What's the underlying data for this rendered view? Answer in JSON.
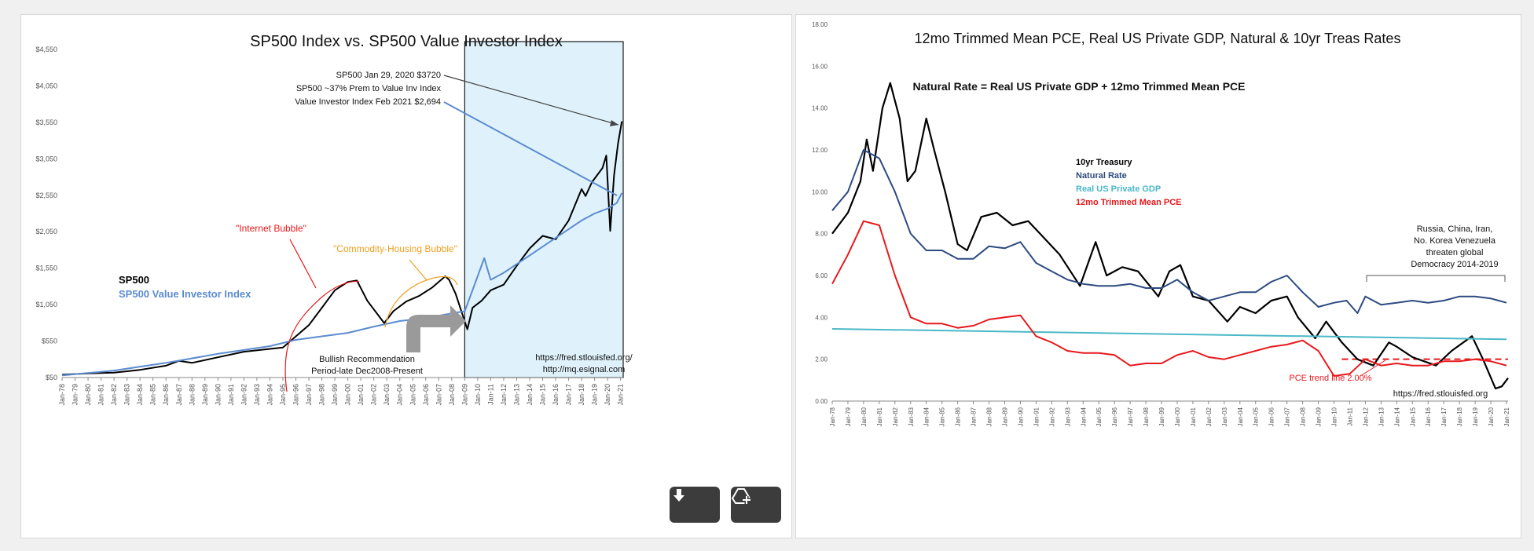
{
  "chart_data": [
    {
      "type": "line",
      "title": "SP500 Index vs. SP500 Value Investor Index",
      "x_labels": [
        "Jan-78",
        "Jan-79",
        "Jan-80",
        "Jan-81",
        "Jan-82",
        "Jan-83",
        "Jan-84",
        "Jan-85",
        "Jan-86",
        "Jan-87",
        "Jan-88",
        "Jan-89",
        "Jan-90",
        "Jan-91",
        "Jan-92",
        "Jan-93",
        "Jan-94",
        "Jan-95",
        "Jan-96",
        "Jan-97",
        "Jan-98",
        "Jan-99",
        "Jan-00",
        "Jan-01",
        "Jan-02",
        "Jan-03",
        "Jan-04",
        "Jan-05",
        "Jan-06",
        "Jan-07",
        "Jan-08",
        "Jan-09",
        "Jan-10",
        "Jan-11",
        "Jan-12",
        "Jan-13",
        "Jan-14",
        "Jan-15",
        "Jan-16",
        "Jan-17",
        "Jan-18",
        "Jan-19",
        "Jan-20",
        "Jan-21"
      ],
      "y_ticks": [
        "$50",
        "$550",
        "$1,050",
        "$1,550",
        "$2,050",
        "$2,550",
        "$3,050",
        "$3,550",
        "$4,050",
        "$4,550"
      ],
      "ylim": [
        50,
        4750
      ],
      "series": [
        {
          "name": "SP500",
          "color": "#000000",
          "x": [
            1978,
            1980,
            1982,
            1984,
            1986,
            1987,
            1988,
            1990,
            1992,
            1994,
            1995,
            1996,
            1997,
            1998,
            1999,
            2000,
            2000.7,
            2001.5,
            2002.8,
            2003.5,
            2004.5,
            2005.5,
            2006.5,
            2007.5,
            2007.8,
            2008.3,
            2009.2,
            2009.6,
            2010.3,
            2011,
            2012,
            2013,
            2014,
            2015,
            2016,
            2017,
            2018,
            2018.3,
            2018.8,
            2019.2,
            2019.6,
            2019.9,
            2020.2,
            2020.5,
            2020.8,
            2021.1
          ],
          "y": [
            90,
            110,
            120,
            160,
            220,
            290,
            260,
            340,
            420,
            460,
            480,
            640,
            800,
            1050,
            1300,
            1420,
            1440,
            1150,
            830,
            1000,
            1140,
            1220,
            1340,
            1500,
            1450,
            1250,
            740,
            1050,
            1150,
            1300,
            1380,
            1650,
            1900,
            2080,
            2030,
            2300,
            2750,
            2650,
            2850,
            2950,
            3050,
            3230,
            2150,
            2950,
            3400,
            3720
          ]
        },
        {
          "name": "SP500 Value Investor Index",
          "color": "#5b8bd0",
          "x": [
            1978,
            1982,
            1986,
            1990,
            1994,
            1996,
            1998,
            2000,
            2002,
            2004,
            2006,
            2008,
            2009,
            2009.7,
            2010.5,
            2011,
            2012,
            2014,
            2016,
            2018,
            2019,
            2020,
            2020.7,
            2021.1
          ],
          "y": [
            80,
            150,
            260,
            390,
            500,
            590,
            640,
            690,
            780,
            860,
            900,
            970,
            1000,
            1350,
            1760,
            1450,
            1550,
            1800,
            2050,
            2300,
            2400,
            2470,
            2550,
            2694
          ]
        }
      ],
      "annotations": {
        "sp500_label": "SP500",
        "value_index_label": "SP500 Value Investor Index",
        "internet_bubble": "\"Internet Bubble\"",
        "commodity_bubble": "\"Commodity-Housing Bubble\"",
        "callout_1": "SP500 Jan 29, 2020  $3720",
        "callout_2": "SP500 ~37% Prem to Value Inv Index",
        "callout_3": "Value Investor Index Feb 2021 $2,694",
        "bullish_1": "Bullish Recommendation",
        "bullish_2": "Period-late Dec2008-Present",
        "source_1": "https://fred.stlouisfed.org/",
        "source_2": "http://mq.esignal.com"
      },
      "highlight_start_year": 2009,
      "highlight_color": "#dff2fb"
    },
    {
      "type": "line",
      "title": "12mo Trimmed Mean PCE, Real US Private GDP, Natural & 10yr Treas Rates",
      "subtitle": "Natural Rate = Real US Private GDP + 12mo Trimmed Mean PCE",
      "x_labels": [
        "Jan-78",
        "Jan-79",
        "Jan-80",
        "Jan-81",
        "Jan-82",
        "Jan-83",
        "Jan-84",
        "Jan-85",
        "Jan-86",
        "Jan-87",
        "Jan-88",
        "Jan-89",
        "Jan-90",
        "Jan-91",
        "Jan-92",
        "Jan-93",
        "Jan-94",
        "Jan-95",
        "Jan-96",
        "Jan-97",
        "Jan-98",
        "Jan-99",
        "Jan-00",
        "Jan-01",
        "Jan-02",
        "Jan-03",
        "Jan-04",
        "Jan-05",
        "Jan-06",
        "Jan-07",
        "Jan-08",
        "Jan-09",
        "Jan-10",
        "Jan-11",
        "Jan-12",
        "Jan-13",
        "Jan-14",
        "Jan-15",
        "Jan-16",
        "Jan-17",
        "Jan-18",
        "Jan-19",
        "Jan-20",
        "Jan-21"
      ],
      "y_ticks": [
        "0.00",
        "2.00",
        "4.00",
        "6.00",
        "8.00",
        "10.00",
        "12.00",
        "14.00",
        "16.00",
        "18.00"
      ],
      "ylim": [
        0,
        18
      ],
      "legend": [
        "10yr Treasury",
        "Natural Rate",
        "Real US Private GDP",
        "12mo Trimmed Mean PCE"
      ],
      "series": [
        {
          "name": "10yr Treasury",
          "color": "#000000",
          "x": [
            1978,
            1979,
            1979.8,
            1980.2,
            1980.6,
            1981.2,
            1981.7,
            1982.3,
            1982.8,
            1983.3,
            1984,
            1984.5,
            1985.2,
            1986,
            1986.6,
            1987.5,
            1988.5,
            1989.5,
            1990.5,
            1991.5,
            1992.5,
            1993.8,
            1994.8,
            1995.5,
            1996.5,
            1997.5,
            1998.8,
            1999.5,
            2000.2,
            2001,
            2002,
            2003.2,
            2004,
            2005,
            2006,
            2007,
            2007.7,
            2008.8,
            2009.5,
            2010.5,
            2011.5,
            2012.5,
            2013.5,
            2014,
            2015,
            2016.5,
            2017.5,
            2018.8,
            2019.5,
            2020.3,
            2020.7,
            2021.1
          ],
          "y": [
            8.0,
            9.0,
            10.5,
            12.5,
            11.0,
            14.0,
            15.2,
            13.5,
            10.5,
            11.0,
            13.5,
            12.0,
            10.0,
            7.5,
            7.2,
            8.8,
            9.0,
            8.4,
            8.6,
            7.8,
            7.0,
            5.5,
            7.6,
            6.0,
            6.4,
            6.2,
            5.0,
            6.2,
            6.5,
            5.0,
            4.8,
            3.8,
            4.5,
            4.2,
            4.8,
            5.0,
            4.0,
            3.0,
            3.8,
            2.8,
            2.0,
            1.7,
            2.8,
            2.6,
            2.1,
            1.7,
            2.4,
            3.1,
            2.0,
            0.6,
            0.7,
            1.1
          ]
        },
        {
          "name": "Natural Rate",
          "color": "#2d4a80",
          "x": [
            1978,
            1979,
            1980,
            1981,
            1982,
            1983,
            1984,
            1985,
            1986,
            1987,
            1988,
            1989,
            1990,
            1991,
            1992,
            1993,
            1994,
            1995,
            1996,
            1997,
            1998,
            1999,
            2000,
            2001,
            2002,
            2003,
            2004,
            2005,
            2006,
            2007,
            2008,
            2009,
            2010,
            2010.8,
            2011.5,
            2012,
            2013,
            2014,
            2015,
            2016,
            2017,
            2018,
            2019,
            2020,
            2021
          ],
          "y": [
            9.1,
            10.0,
            12.0,
            11.6,
            10.0,
            8.0,
            7.2,
            7.2,
            6.8,
            6.8,
            7.4,
            7.3,
            7.6,
            6.6,
            6.2,
            5.8,
            5.6,
            5.5,
            5.5,
            5.6,
            5.4,
            5.4,
            5.8,
            5.2,
            4.8,
            5.0,
            5.2,
            5.2,
            5.7,
            6.0,
            5.2,
            4.5,
            4.7,
            4.8,
            4.2,
            5.0,
            4.6,
            4.7,
            4.8,
            4.7,
            4.8,
            5.0,
            5.0,
            4.9,
            4.7
          ]
        },
        {
          "name": "Real US Private GDP",
          "color": "#4bb8c8",
          "x": [
            1978,
            2021
          ],
          "y": [
            3.45,
            2.95
          ]
        },
        {
          "name": "12mo Trimmed Mean PCE",
          "color": "#e8181c",
          "x": [
            1978,
            1979,
            1980,
            1981,
            1982,
            1983,
            1984,
            1985,
            1986,
            1987,
            1988,
            1989,
            1990,
            1991,
            1992,
            1993,
            1994,
            1995,
            1996,
            1997,
            1998,
            1999,
            2000,
            2001,
            2002,
            2003,
            2004,
            2005,
            2006,
            2007,
            2008,
            2009,
            2010,
            2011,
            2012,
            2013,
            2014,
            2015,
            2016,
            2017,
            2018,
            2019,
            2020,
            2021
          ],
          "y": [
            5.6,
            7.0,
            8.6,
            8.4,
            6.0,
            4.0,
            3.7,
            3.7,
            3.5,
            3.6,
            3.9,
            4.0,
            4.1,
            3.1,
            2.8,
            2.4,
            2.3,
            2.3,
            2.2,
            1.7,
            1.8,
            1.8,
            2.2,
            2.4,
            2.1,
            2.0,
            2.2,
            2.4,
            2.6,
            2.7,
            2.9,
            2.4,
            1.2,
            1.3,
            2.0,
            1.7,
            1.8,
            1.7,
            1.7,
            1.9,
            1.9,
            2.0,
            1.9,
            1.7
          ]
        }
      ],
      "trend_line": {
        "label": "PCE trend line 2.00%",
        "value": 2.0,
        "start_year": 2010.5,
        "color": "#e8181c"
      },
      "annotations": {
        "geo_1": "Russia, China, Iran,",
        "geo_2": "No. Korea Venezuela",
        "geo_3": "threaten global",
        "geo_4": "Democracy 2014-2019",
        "source": "https://fred.stlouisfed.org"
      }
    }
  ]
}
